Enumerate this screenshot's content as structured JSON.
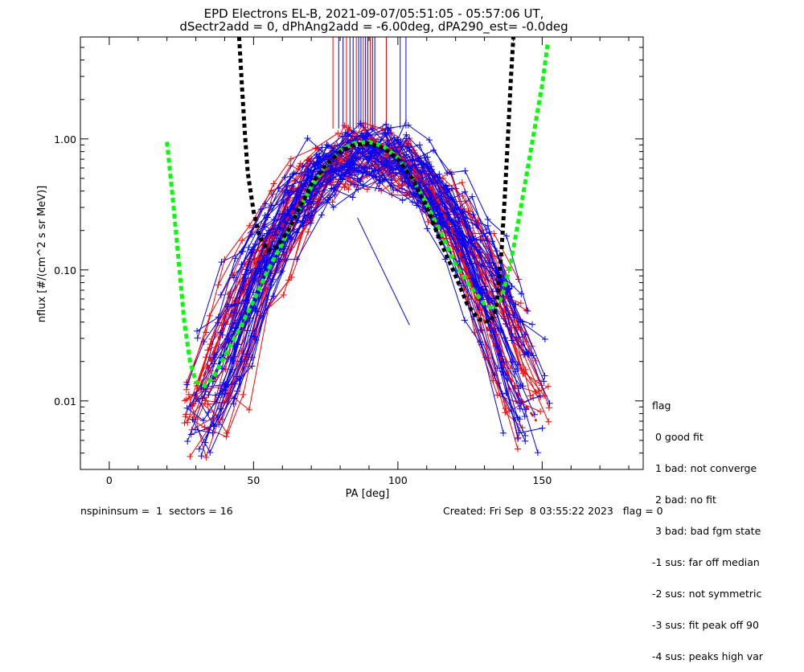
{
  "title_line1": "EPD Electrons EL-B, 2021-09-07/05:51:05 - 05:57:06 UT,",
  "title_line2": "dSectr2add = 0, dPhAng2add = -6.00deg, dPA290_est=  -0.0deg",
  "footer_left": "nspininsum =  1  sectors = 16",
  "footer_right": "Created: Fri Sep  8 03:55:22 2023   flag = 0",
  "legend": {
    "title": "flag",
    "items": [
      " 0 good fit",
      " 1 bad: not converge",
      " 2 bad: no fit",
      " 3 bad: bad fgm state",
      "-1 sus: far off median",
      "-2 sus: not symmetric",
      "-3 sus: fit peak off 90",
      "-4 sus: peaks high var"
    ]
  },
  "colors": {
    "red": "#ff0000",
    "blue": "#0000ff",
    "green": "#00ff00",
    "black": "#000000"
  },
  "chart_data": {
    "type": "scatter",
    "xlabel": "PA [deg]",
    "ylabel": "nflux [#/(cm^2 s sr MeV)]",
    "xlim": [
      -10,
      185
    ],
    "ylim": [
      0.003,
      6.0
    ],
    "ylog": true,
    "xticks": [
      0,
      50,
      100,
      150
    ],
    "xtick_labels": [
      "0",
      "50",
      "100",
      "150"
    ],
    "yticks": [
      0.01,
      0.1,
      1.0
    ],
    "ytick_labels": [
      "0.01",
      "0.10",
      "1.00"
    ],
    "series": [
      {
        "color": "red",
        "style": "dashed",
        "points": [
          [
            29,
            0.009
          ],
          [
            33,
            0.016
          ],
          [
            38,
            0.03
          ],
          [
            45,
            0.06
          ],
          [
            52,
            0.12
          ],
          [
            60,
            0.22
          ],
          [
            68,
            0.38
          ],
          [
            76,
            0.6
          ],
          [
            84,
            0.85
          ],
          [
            90,
            0.95
          ],
          [
            96,
            0.88
          ],
          [
            104,
            0.65
          ],
          [
            112,
            0.4
          ],
          [
            118,
            0.22
          ],
          [
            124,
            0.1
          ],
          [
            130,
            0.04
          ],
          [
            136,
            0.02
          ],
          [
            142,
            0.011
          ],
          [
            148,
            0.007
          ]
        ]
      },
      {
        "color": "green",
        "style": "dotted",
        "points": [
          [
            20,
            0.95
          ],
          [
            22,
            0.35
          ],
          [
            24,
            0.12
          ],
          [
            26,
            0.04
          ],
          [
            28,
            0.02
          ],
          [
            30,
            0.014
          ],
          [
            33,
            0.013
          ],
          [
            36,
            0.015
          ],
          [
            40,
            0.022
          ],
          [
            45,
            0.035
          ],
          [
            50,
            0.058
          ],
          [
            55,
            0.1
          ],
          [
            60,
            0.16
          ],
          [
            65,
            0.27
          ],
          [
            70,
            0.43
          ],
          [
            75,
            0.62
          ],
          [
            80,
            0.82
          ],
          [
            85,
            0.93
          ],
          [
            90,
            0.95
          ],
          [
            95,
            0.88
          ],
          [
            100,
            0.72
          ],
          [
            105,
            0.5
          ],
          [
            110,
            0.32
          ],
          [
            115,
            0.19
          ],
          [
            120,
            0.11
          ],
          [
            125,
            0.075
          ],
          [
            130,
            0.055
          ],
          [
            133,
            0.05
          ],
          [
            136,
            0.062
          ],
          [
            139,
            0.11
          ],
          [
            142,
            0.25
          ],
          [
            146,
            0.8
          ],
          [
            150,
            2.6
          ],
          [
            152,
            5.5
          ]
        ]
      },
      {
        "color": "black",
        "style": "dotted",
        "points": [
          [
            45,
            6.0
          ],
          [
            46,
            2.5
          ],
          [
            47,
            1.1
          ],
          [
            48,
            0.55
          ],
          [
            50,
            0.28
          ],
          [
            52,
            0.18
          ],
          [
            55,
            0.14
          ],
          [
            58,
            0.15
          ],
          [
            62,
            0.2
          ],
          [
            66,
            0.3
          ],
          [
            70,
            0.45
          ],
          [
            75,
            0.63
          ],
          [
            80,
            0.8
          ],
          [
            85,
            0.9
          ],
          [
            90,
            0.92
          ],
          [
            95,
            0.85
          ],
          [
            100,
            0.7
          ],
          [
            105,
            0.5
          ],
          [
            110,
            0.3
          ],
          [
            115,
            0.16
          ],
          [
            120,
            0.09
          ],
          [
            124,
            0.055
          ],
          [
            128,
            0.042
          ],
          [
            132,
            0.04
          ],
          [
            134,
            0.05
          ],
          [
            135,
            0.08
          ],
          [
            136,
            0.15
          ],
          [
            137,
            0.35
          ],
          [
            138,
            0.9
          ],
          [
            139,
            2.5
          ],
          [
            140,
            6.0
          ]
        ]
      }
    ]
  }
}
